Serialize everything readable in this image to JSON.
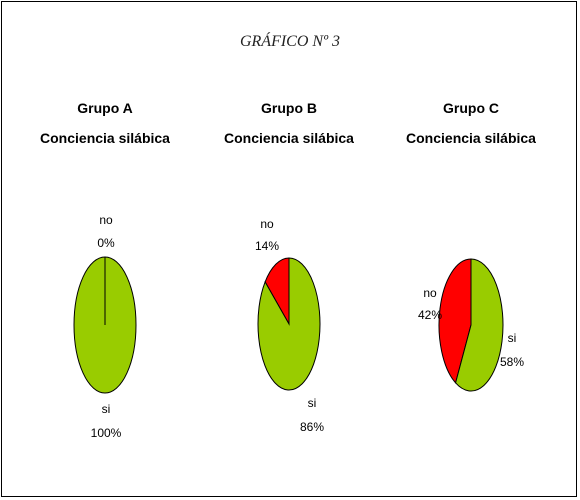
{
  "figure_title": "GRÁFICO Nº 3",
  "colors": {
    "si": "#99cc00",
    "no": "#ff0000",
    "outline": "#000000"
  },
  "chart_data": [
    {
      "type": "pie",
      "title": "Grupo A",
      "subtitle": "Conciencia silábica",
      "slices": [
        {
          "label": "no",
          "value": 0,
          "display": "0%"
        },
        {
          "label": "si",
          "value": 100,
          "display": "100%"
        }
      ]
    },
    {
      "type": "pie",
      "title": "Grupo B",
      "subtitle": "Conciencia silábica",
      "slices": [
        {
          "label": "no",
          "value": 14,
          "display": "14%"
        },
        {
          "label": "si",
          "value": 86,
          "display": "86%"
        }
      ]
    },
    {
      "type": "pie",
      "title": "Grupo C",
      "subtitle": "Conciencia silábica",
      "slices": [
        {
          "label": "no",
          "value": 42,
          "display": "42%"
        },
        {
          "label": "si",
          "value": 58,
          "display": "58%"
        }
      ]
    }
  ]
}
